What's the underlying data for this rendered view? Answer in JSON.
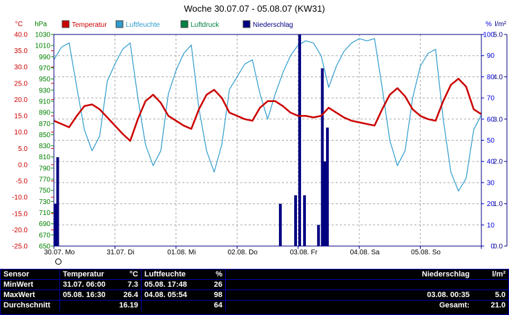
{
  "title": "Woche 30.07.07 - 05.08.07 (KW31)",
  "legend": [
    {
      "label": "Temperatur",
      "color": "#cc0000"
    },
    {
      "label": "Luftfeuchte",
      "color": "#2f9ccc"
    },
    {
      "label": "Luftdruck",
      "color": "#008040"
    },
    {
      "label": "Niederschlag",
      "color": "#000080"
    }
  ],
  "axes": {
    "temperature": {
      "unit": "°C",
      "color": "#cc0000",
      "range": [
        -25,
        40
      ],
      "ticks": [
        "40.0",
        "35.0",
        "30.0",
        "25.0",
        "20.0",
        "15.0",
        "10.0",
        "5.0",
        "0.0",
        "-5.0",
        "-10.0",
        "-15.0",
        "-20.0",
        "-25.0"
      ]
    },
    "pressure": {
      "unit": "hPa",
      "color": "#008000",
      "range": [
        650,
        1030
      ],
      "ticks": [
        "1030",
        "1010",
        "990",
        "970",
        "950",
        "930",
        "910",
        "890",
        "870",
        "850",
        "830",
        "810",
        "790",
        "770",
        "750",
        "730",
        "710",
        "690",
        "670",
        "650"
      ]
    },
    "humidity": {
      "unit": "%",
      "color": "#0000d8",
      "range": [
        0,
        100
      ],
      "ticks": [
        "100",
        "90",
        "80",
        "70",
        "60",
        "50",
        "40",
        "30",
        "20",
        "10",
        "0"
      ]
    },
    "rain": {
      "unit": "l/m²",
      "color": "#000080",
      "range": [
        0,
        5
      ],
      "ticks": [
        "5.0",
        "4.0",
        "3.0",
        "2.0",
        "1.0",
        "0.0"
      ]
    }
  },
  "x_axis": {
    "color": "#000000",
    "labels": [
      "30.07. Mo",
      "31.07. Di",
      "01.08. Mi",
      "02.08. Do",
      "03.08. Fr",
      "04.08. Sa",
      "05.08. So"
    ]
  },
  "chart_data": {
    "type": "line+bar",
    "title": "Woche 30.07.07 - 05.08.07 (KW31)",
    "x_unit": "hours since 30.07.07 00:00",
    "x_range": [
      0,
      168
    ],
    "grid": true,
    "series": [
      {
        "name": "Temperatur",
        "type": "line",
        "unit": "°C",
        "axis_range": [
          -25,
          40
        ],
        "color": "#cc0000",
        "x": [
          0,
          3,
          6,
          9,
          12,
          15,
          18,
          21,
          24,
          27,
          30,
          33,
          36,
          39,
          42,
          45,
          48,
          51,
          54,
          57,
          60,
          63,
          66,
          69,
          72,
          75,
          78,
          81,
          84,
          87,
          90,
          93,
          96,
          99,
          102,
          105,
          108,
          111,
          114,
          117,
          120,
          123,
          126,
          129,
          132,
          135,
          138,
          141,
          144,
          147,
          150,
          153,
          156,
          159,
          162,
          165,
          168
        ],
        "values": [
          13.5,
          12.5,
          11.5,
          15.0,
          18.0,
          18.5,
          17.0,
          14.5,
          12.0,
          9.5,
          7.3,
          14.0,
          19.5,
          21.5,
          19.0,
          15.0,
          13.5,
          12.0,
          11.0,
          17.0,
          21.5,
          23.0,
          20.5,
          16.0,
          15.0,
          14.0,
          13.5,
          17.5,
          19.5,
          19.5,
          18.0,
          16.0,
          15.0,
          15.0,
          14.5,
          15.0,
          17.5,
          16.0,
          14.5,
          13.5,
          13.0,
          12.5,
          12.0,
          17.0,
          21.5,
          23.5,
          21.0,
          17.0,
          15.0,
          14.0,
          13.5,
          19.5,
          24.5,
          26.4,
          24.0,
          17.0,
          15.5
        ]
      },
      {
        "name": "Luftfeuchte",
        "type": "line",
        "unit": "%",
        "axis_range": [
          0,
          100
        ],
        "color": "#2f9ccc",
        "x": [
          0,
          3,
          6,
          9,
          12,
          15,
          18,
          21,
          24,
          27,
          30,
          33,
          36,
          39,
          42,
          45,
          48,
          51,
          54,
          57,
          60,
          63,
          66,
          69,
          72,
          75,
          78,
          81,
          84,
          87,
          90,
          93,
          96,
          99,
          102,
          105,
          108,
          111,
          114,
          117,
          120,
          123,
          126,
          129,
          132,
          135,
          138,
          141,
          144,
          147,
          150,
          153,
          156,
          159,
          162,
          165,
          168
        ],
        "values": [
          88,
          94,
          96,
          75,
          55,
          45,
          52,
          78,
          86,
          93,
          96,
          70,
          48,
          38,
          45,
          72,
          83,
          91,
          95,
          65,
          45,
          35,
          48,
          74,
          80,
          86,
          88,
          72,
          60,
          72,
          82,
          90,
          95,
          97,
          96,
          90,
          75,
          85,
          92,
          96,
          98,
          97,
          98,
          75,
          50,
          38,
          45,
          70,
          85,
          91,
          93,
          60,
          35,
          26,
          32,
          55,
          62
        ]
      },
      {
        "name": "Luftdruck",
        "type": "line",
        "unit": "hPa",
        "axis_range": [
          650,
          1030
        ],
        "color": "#008040",
        "x": [],
        "values": []
      },
      {
        "name": "Niederschlag",
        "type": "bar",
        "unit": "l/m²",
        "axis_range": [
          0,
          5
        ],
        "color": "#000080",
        "x": [
          0.5,
          1.5,
          89.0,
          95.0,
          96.6,
          98.5,
          104.0,
          105.5,
          106.5,
          107.5
        ],
        "values": [
          1.0,
          2.1,
          1.0,
          1.2,
          5.0,
          1.2,
          0.5,
          4.2,
          2.0,
          2.8
        ],
        "total": 21.0
      }
    ]
  },
  "table": {
    "header": {
      "sensor": "Sensor",
      "temp_name": "Temperatur",
      "temp_unit": "°C",
      "hum_name": "Luftfeuchte",
      "hum_unit": "%",
      "rain_name": "Niederschlag",
      "rain_unit": "l/m²"
    },
    "min": {
      "label": "MinWert",
      "temp_time": "31.07. 06:00",
      "temp_val": "7.3",
      "hum_time": "05.08. 17:48",
      "hum_val": "26",
      "rain_time": "",
      "rain_val": ""
    },
    "max": {
      "label": "MaxWert",
      "temp_time": "05.08. 16:30",
      "temp_val": "26.4",
      "hum_time": "04.08. 05:54",
      "hum_val": "98",
      "rain_time": "03.08. 00:35",
      "rain_val": "5.0"
    },
    "avg": {
      "label": "Durchschnitt",
      "temp_time": "",
      "temp_val": "16.19",
      "hum_time": "",
      "hum_val": "64",
      "rain_label": "Gesamt:",
      "rain_val": "21.0"
    }
  }
}
